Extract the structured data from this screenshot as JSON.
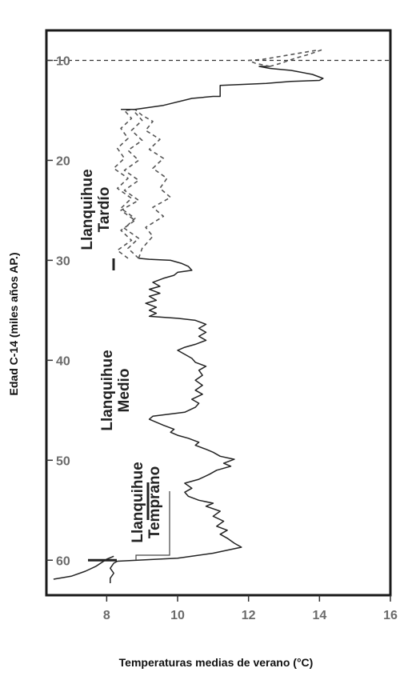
{
  "chart_data": {
    "type": "line",
    "xlabel": "Temperaturas medias de verano (°C)",
    "ylabel": "Edad C-14 (miles años AP.)",
    "xlim": [
      6.3,
      16
    ],
    "ylim": [
      7,
      63.5
    ],
    "x_ticks": [
      "8",
      "10",
      "12",
      "14",
      "16"
    ],
    "y_ticks": [
      "10",
      "20",
      "30",
      "40",
      "50",
      "60"
    ],
    "reference_line": {
      "age": 10,
      "style": "dashed"
    },
    "stages": [
      {
        "label_line1": "Llanquihue",
        "label_line2": "Tardío",
        "age_from": 10,
        "age_to": 25
      },
      {
        "label_line1": "Llanquihue",
        "label_line2": "Medio",
        "age_from": 25,
        "age_to": 58
      },
      {
        "label_line1": "Llanquihue",
        "label_line2": "Temprano",
        "age_from": 58,
        "age_to": 60
      }
    ],
    "series": [
      {
        "style": "solid",
        "points": [
          [
            8.1,
            62.3
          ],
          [
            8.1,
            61.8
          ],
          [
            8.2,
            61.3
          ],
          [
            8.1,
            60.8
          ],
          [
            8.2,
            60.3
          ],
          [
            8.3,
            60.1
          ],
          [
            10.0,
            59.8
          ],
          [
            11.0,
            59.3
          ],
          [
            11.8,
            58.7
          ],
          [
            11.6,
            58.3
          ],
          [
            11.4,
            57.8
          ],
          [
            11.2,
            57.4
          ],
          [
            11.4,
            57.0
          ],
          [
            11.1,
            56.6
          ],
          [
            11.3,
            56.1
          ],
          [
            11.0,
            55.6
          ],
          [
            11.2,
            55.1
          ],
          [
            10.8,
            54.6
          ],
          [
            11.0,
            54.3
          ],
          [
            10.6,
            54.0
          ],
          [
            10.3,
            53.6
          ],
          [
            10.2,
            53.2
          ],
          [
            10.4,
            52.8
          ],
          [
            10.2,
            52.3
          ],
          [
            10.6,
            51.9
          ],
          [
            10.9,
            51.4
          ],
          [
            11.1,
            51.0
          ],
          [
            11.5,
            50.6
          ],
          [
            11.3,
            50.3
          ],
          [
            11.6,
            49.9
          ],
          [
            11.2,
            49.6
          ],
          [
            11.0,
            49.2
          ],
          [
            10.8,
            48.9
          ],
          [
            10.5,
            48.5
          ],
          [
            10.6,
            48.2
          ],
          [
            10.3,
            47.8
          ],
          [
            10.0,
            47.5
          ],
          [
            9.8,
            47.2
          ],
          [
            9.9,
            46.9
          ],
          [
            9.6,
            46.5
          ],
          [
            9.4,
            46.2
          ],
          [
            9.2,
            45.9
          ],
          [
            9.3,
            45.6
          ],
          [
            10.2,
            45.2
          ],
          [
            10.5,
            44.7
          ],
          [
            10.6,
            44.3
          ],
          [
            10.4,
            43.9
          ],
          [
            10.7,
            43.4
          ],
          [
            10.5,
            43.0
          ],
          [
            10.7,
            42.5
          ],
          [
            10.5,
            42.0
          ],
          [
            10.7,
            41.5
          ],
          [
            10.6,
            41.0
          ],
          [
            10.8,
            40.6
          ],
          [
            10.5,
            40.2
          ],
          [
            10.4,
            39.8
          ],
          [
            10.2,
            39.4
          ],
          [
            10.0,
            39.0
          ],
          [
            10.2,
            38.7
          ],
          [
            10.5,
            38.4
          ],
          [
            10.8,
            38.0
          ],
          [
            10.6,
            37.6
          ],
          [
            10.8,
            37.2
          ],
          [
            10.6,
            36.8
          ],
          [
            10.8,
            36.4
          ],
          [
            10.5,
            36.0
          ],
          [
            10.0,
            35.8
          ],
          [
            9.6,
            35.7
          ],
          [
            9.2,
            35.6
          ],
          [
            9.4,
            35.3
          ],
          [
            9.2,
            35.0
          ],
          [
            9.4,
            34.7
          ],
          [
            9.1,
            34.3
          ],
          [
            9.4,
            34.0
          ],
          [
            9.2,
            33.6
          ],
          [
            9.5,
            33.3
          ],
          [
            9.2,
            32.9
          ],
          [
            9.5,
            32.6
          ],
          [
            9.3,
            32.2
          ],
          [
            9.6,
            31.8
          ],
          [
            9.9,
            31.5
          ],
          [
            10.0,
            31.2
          ],
          [
            10.4,
            31.0
          ],
          [
            10.3,
            30.6
          ],
          [
            10.1,
            30.3
          ],
          [
            9.8,
            30.0
          ],
          [
            9.2,
            29.9
          ],
          [
            8.9,
            29.8
          ]
        ]
      },
      {
        "style": "dashed",
        "points": [
          [
            8.9,
            29.8
          ],
          [
            9.0,
            28.8
          ],
          [
            9.3,
            27.6
          ],
          [
            9.1,
            26.7
          ],
          [
            9.6,
            25.6
          ],
          [
            9.3,
            24.7
          ],
          [
            9.8,
            23.7
          ],
          [
            9.5,
            22.8
          ],
          [
            9.7,
            21.8
          ],
          [
            9.3,
            20.8
          ],
          [
            9.6,
            19.8
          ],
          [
            9.2,
            18.9
          ],
          [
            9.5,
            17.9
          ],
          [
            9.1,
            17.0
          ],
          [
            9.3,
            16.1
          ],
          [
            9.0,
            15.5
          ],
          [
            8.8,
            14.9
          ]
        ]
      },
      {
        "style": "dashed",
        "points": [
          [
            8.9,
            29.8
          ],
          [
            8.6,
            28.8
          ],
          [
            8.9,
            27.8
          ],
          [
            8.5,
            26.8
          ],
          [
            8.8,
            25.8
          ],
          [
            8.4,
            24.8
          ],
          [
            8.7,
            23.8
          ],
          [
            8.3,
            22.8
          ],
          [
            8.6,
            21.8
          ],
          [
            8.2,
            20.8
          ],
          [
            8.5,
            19.8
          ],
          [
            8.3,
            18.8
          ],
          [
            8.6,
            17.8
          ],
          [
            8.4,
            16.8
          ],
          [
            8.7,
            15.8
          ],
          [
            8.5,
            15.0
          ],
          [
            8.8,
            14.9
          ]
        ]
      },
      {
        "style": "dashed",
        "points": [
          [
            8.6,
            29.8
          ],
          [
            8.3,
            29.0
          ],
          [
            8.7,
            28.0
          ],
          [
            8.4,
            27.0
          ],
          [
            8.8,
            26.0
          ],
          [
            8.4,
            25.0
          ],
          [
            8.9,
            24.0
          ],
          [
            8.5,
            23.0
          ],
          [
            8.9,
            22.0
          ],
          [
            8.5,
            21.0
          ],
          [
            8.9,
            20.0
          ],
          [
            8.6,
            19.0
          ],
          [
            9.0,
            18.0
          ],
          [
            8.7,
            17.0
          ],
          [
            9.0,
            16.0
          ],
          [
            8.8,
            15.2
          ]
        ]
      },
      {
        "style": "solid",
        "points": [
          [
            8.4,
            14.9
          ],
          [
            8.8,
            14.9
          ],
          [
            9.6,
            14.5
          ],
          [
            10.4,
            13.8
          ],
          [
            11.0,
            13.6
          ],
          [
            11.2,
            13.6
          ],
          [
            11.2,
            12.9
          ],
          [
            11.2,
            12.5
          ],
          [
            12.5,
            12.3
          ],
          [
            13.2,
            12.1
          ],
          [
            14.0,
            12.0
          ],
          [
            14.1,
            11.8
          ],
          [
            13.8,
            11.4
          ],
          [
            13.2,
            11.0
          ],
          [
            12.6,
            10.8
          ],
          [
            12.3,
            10.6
          ],
          [
            12.6,
            10.6
          ]
        ]
      },
      {
        "style": "dashed",
        "points": [
          [
            12.6,
            10.6
          ],
          [
            12.2,
            10.3
          ],
          [
            12.0,
            10.0
          ],
          [
            12.4,
            9.9
          ],
          [
            12.9,
            9.6
          ],
          [
            13.4,
            9.3
          ],
          [
            13.9,
            9.0
          ]
        ]
      },
      {
        "style": "dashed",
        "points": [
          [
            12.6,
            10.6
          ],
          [
            12.9,
            10.3
          ],
          [
            13.3,
            9.8
          ],
          [
            13.7,
            9.4
          ],
          [
            14.1,
            8.9
          ]
        ]
      },
      {
        "style": "solid",
        "points": [
          [
            6.5,
            61.9
          ],
          [
            7.0,
            61.6
          ],
          [
            7.4,
            61.1
          ],
          [
            7.7,
            60.6
          ],
          [
            8.0,
            59.9
          ],
          [
            8.2,
            59.6
          ]
        ]
      }
    ]
  }
}
